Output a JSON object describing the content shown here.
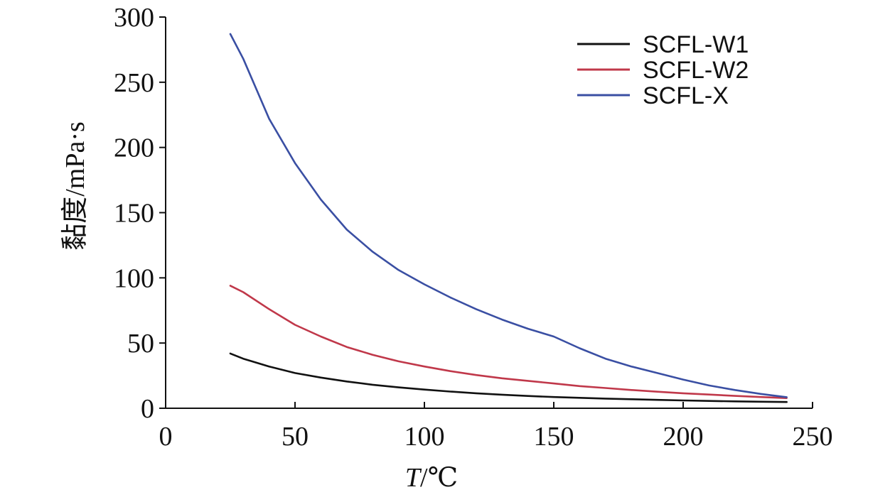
{
  "chart_data": {
    "type": "line",
    "title": "",
    "xlabel": {
      "italic": "T",
      "rest": "/℃"
    },
    "ylabel": "黏度/mPa·s",
    "xlim": [
      0,
      250
    ],
    "ylim": [
      0,
      300
    ],
    "xticks": [
      0,
      50,
      100,
      150,
      200,
      250
    ],
    "yticks": [
      0,
      50,
      100,
      150,
      200,
      250,
      300
    ],
    "legend_position": "top-right",
    "grid": false,
    "series": [
      {
        "name": "SCFL-W1",
        "color": "#111111",
        "x": [
          25,
          30,
          40,
          50,
          60,
          70,
          80,
          90,
          100,
          110,
          120,
          130,
          140,
          150,
          160,
          170,
          180,
          190,
          200,
          210,
          220,
          230,
          240
        ],
        "y": [
          42,
          38,
          32,
          27,
          23.5,
          20.5,
          18,
          16,
          14.3,
          12.8,
          11.5,
          10.4,
          9.4,
          8.6,
          8.0,
          7.4,
          6.9,
          6.4,
          6.0,
          5.6,
          5.3,
          5.0,
          4.8
        ]
      },
      {
        "name": "SCFL-W2",
        "color": "#c0384a",
        "x": [
          25,
          30,
          40,
          50,
          60,
          70,
          80,
          90,
          100,
          110,
          120,
          130,
          140,
          150,
          160,
          170,
          180,
          190,
          200,
          210,
          220,
          230,
          240
        ],
        "y": [
          94,
          89,
          76,
          64,
          55,
          47,
          41,
          36,
          32,
          28.5,
          25.5,
          23,
          21,
          19,
          17,
          15.5,
          14,
          12.7,
          11.5,
          10.5,
          9.5,
          8.6,
          7.8
        ]
      },
      {
        "name": "SCFL-X",
        "color": "#3a4fa3",
        "x": [
          25,
          30,
          40,
          50,
          60,
          70,
          80,
          90,
          100,
          110,
          120,
          130,
          140,
          150,
          160,
          170,
          180,
          190,
          200,
          210,
          220,
          230,
          240
        ],
        "y": [
          287,
          268,
          222,
          188,
          160,
          137,
          120,
          106,
          95,
          85,
          76,
          68,
          61,
          55,
          46,
          38,
          32,
          27,
          22,
          17.5,
          14,
          11,
          8.5
        ]
      }
    ]
  }
}
